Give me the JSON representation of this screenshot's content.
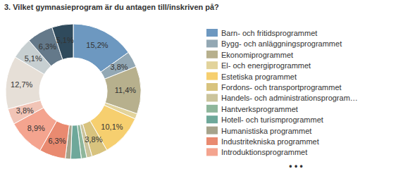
{
  "chart_data": {
    "type": "donut",
    "title": "3. Vilket gymnasieprogram är du antagen till/inskriven på?",
    "categories": [
      "Barn- och fritidsprogrammet",
      "Bygg- och anläggningsprogrammet",
      "Ekonomiprogrammet",
      "El- och energiprogrammet",
      "Estetiska programmet",
      "Fordons- och transportprogrammet",
      "Handels- och administrationsprogram…",
      "Hantverksprogrammet",
      "Hotell- och turismprogrammet",
      "Humanistiska programmet",
      "Industritekniska programmet",
      "Introduktionsprogrammet",
      null,
      null,
      null,
      null,
      null
    ],
    "values": [
      15.2,
      3.8,
      11.4,
      1.3,
      10.1,
      3.8,
      1.3,
      1.3,
      2.5,
      1.3,
      6.3,
      8.9,
      3.8,
      12.7,
      5.1,
      6.3,
      5.1
    ],
    "value_labels": [
      "15,2%",
      "3,8%",
      "11,4%",
      null,
      "10,1%",
      "3,8%",
      null,
      null,
      null,
      null,
      "6,3%",
      "8,9%",
      "3,8%",
      "12,7%",
      "5,1%",
      "6,3%",
      "5,1%"
    ],
    "colors": [
      "#6d98c0",
      "#93a8b4",
      "#b7b08d",
      "#e2d39b",
      "#f6cf6f",
      "#d8c37e",
      "#cbc49c",
      "#8eb69b",
      "#6ea89a",
      "#a6a38b",
      "#e98a70",
      "#f4a48f",
      "#f1c4b6",
      "#e6dfd7",
      "#c7cfd1",
      "#64798a",
      "#2f4a5c"
    ],
    "data_labels": true,
    "legend": "right",
    "legend_overflow": "• • •"
  }
}
